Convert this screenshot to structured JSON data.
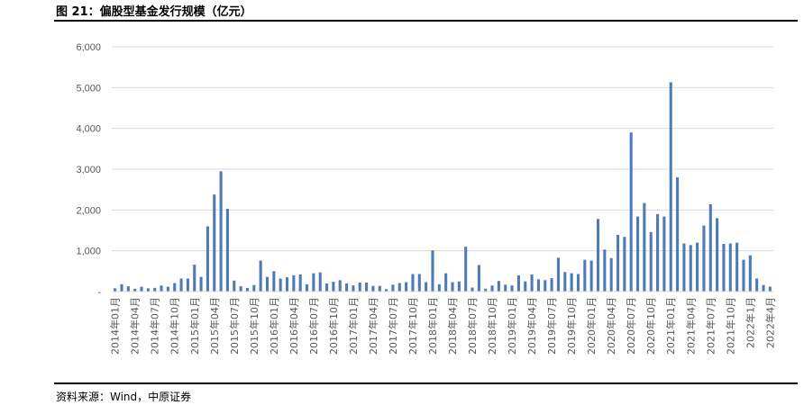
{
  "header": {
    "title": "图 21：偏股型基金发行规模（亿元）"
  },
  "footer": {
    "source": "资料来源：Wind，中原证券"
  },
  "chart_data": {
    "type": "bar",
    "title": "图 21：偏股型基金发行规模（亿元）",
    "xlabel": "",
    "ylabel": "",
    "ylim": [
      0,
      6000
    ],
    "yticks": [
      0,
      1000,
      2000,
      3000,
      4000,
      5000,
      6000
    ],
    "ytick_labels": [
      "-",
      "1,000",
      "2,000",
      "3,000",
      "4,000",
      "5,000",
      "6,000"
    ],
    "grid": true,
    "legend": "none",
    "color": "#4e7bb8",
    "categories": [
      "2014年01月",
      "2014年02月",
      "2014年03月",
      "2014年04月",
      "2014年05月",
      "2014年06月",
      "2014年07月",
      "2014年08月",
      "2014年09月",
      "2014年10月",
      "2014年11月",
      "2014年12月",
      "2015年01月",
      "2015年02月",
      "2015年03月",
      "2015年04月",
      "2015年05月",
      "2015年06月",
      "2015年07月",
      "2015年08月",
      "2015年09月",
      "2015年10月",
      "2015年11月",
      "2015年12月",
      "2016年01月",
      "2016年02月",
      "2016年03月",
      "2016年04月",
      "2016年05月",
      "2016年06月",
      "2016年07月",
      "2016年08月",
      "2016年09月",
      "2016年10月",
      "2016年11月",
      "2016年12月",
      "2017年01月",
      "2017年02月",
      "2017年03月",
      "2017年04月",
      "2017年05月",
      "2017年06月",
      "2017年07月",
      "2017年08月",
      "2017年09月",
      "2017年10月",
      "2017年11月",
      "2017年12月",
      "2018年01月",
      "2018年02月",
      "2018年03月",
      "2018年04月",
      "2018年05月",
      "2018年06月",
      "2018年07月",
      "2018年08月",
      "2018年09月",
      "2018年10月",
      "2018年11月",
      "2018年12月",
      "2019年01月",
      "2019年02月",
      "2019年03月",
      "2019年04月",
      "2019年05月",
      "2019年06月",
      "2019年07月",
      "2019年08月",
      "2019年09月",
      "2019年10月",
      "2019年11月",
      "2019年12月",
      "2020年01月",
      "2020年02月",
      "2020年03月",
      "2020年04月",
      "2020年05月",
      "2020年06月",
      "2020年07月",
      "2020年08月",
      "2020年09月",
      "2020年10月",
      "2020年11月",
      "2020年12月",
      "2021年01月",
      "2021年02月",
      "2021年03月",
      "2021年04月",
      "2021年05月",
      "2021年06月",
      "2021年07月",
      "2021年08月",
      "2021年09月",
      "2021年10月",
      "2021年11月",
      "2021年12月",
      "2022年1月",
      "2022年2月",
      "2022年3月",
      "2022年4月"
    ],
    "tick_labels": [
      "2014年01月",
      "2014年04月",
      "2014年07月",
      "2014年10月",
      "2015年01月",
      "2015年04月",
      "2015年07月",
      "2015年10月",
      "2016年01月",
      "2016年04月",
      "2016年07月",
      "2016年10月",
      "2017年01月",
      "2017年04月",
      "2017年07月",
      "2017年10月",
      "2018年01月",
      "2018年04月",
      "2018年07月",
      "2018年10月",
      "2019年01月",
      "2019年04月",
      "2019年07月",
      "2019年10月",
      "2020年01月",
      "2020年04月",
      "2020年07月",
      "2020年10月",
      "2021年01月",
      "2021年04月",
      "2021年07月",
      "2021年10月",
      "2022年1月",
      "2022年4月"
    ],
    "tick_indices": [
      0,
      3,
      6,
      9,
      12,
      15,
      18,
      21,
      24,
      27,
      30,
      33,
      36,
      39,
      42,
      45,
      48,
      51,
      54,
      57,
      60,
      63,
      66,
      69,
      72,
      75,
      78,
      81,
      84,
      87,
      90,
      93,
      96,
      99
    ],
    "values": [
      80,
      180,
      130,
      70,
      120,
      80,
      90,
      150,
      120,
      210,
      320,
      320,
      660,
      360,
      1600,
      2380,
      2950,
      2030,
      270,
      130,
      90,
      160,
      760,
      360,
      500,
      320,
      350,
      400,
      420,
      180,
      450,
      470,
      200,
      240,
      280,
      200,
      150,
      220,
      220,
      140,
      140,
      60,
      170,
      210,
      230,
      430,
      430,
      230,
      1010,
      180,
      450,
      230,
      250,
      1100,
      100,
      650,
      70,
      150,
      260,
      170,
      150,
      400,
      250,
      420,
      300,
      280,
      330,
      830,
      480,
      450,
      430,
      780,
      760,
      1780,
      1030,
      820,
      1390,
      1340,
      3900,
      1840,
      2170,
      1460,
      1900,
      1840,
      5130,
      2800,
      1180,
      1140,
      1200,
      1620,
      2140,
      1800,
      1170,
      1180,
      1200,
      780,
      890,
      320,
      160,
      120
    ]
  }
}
